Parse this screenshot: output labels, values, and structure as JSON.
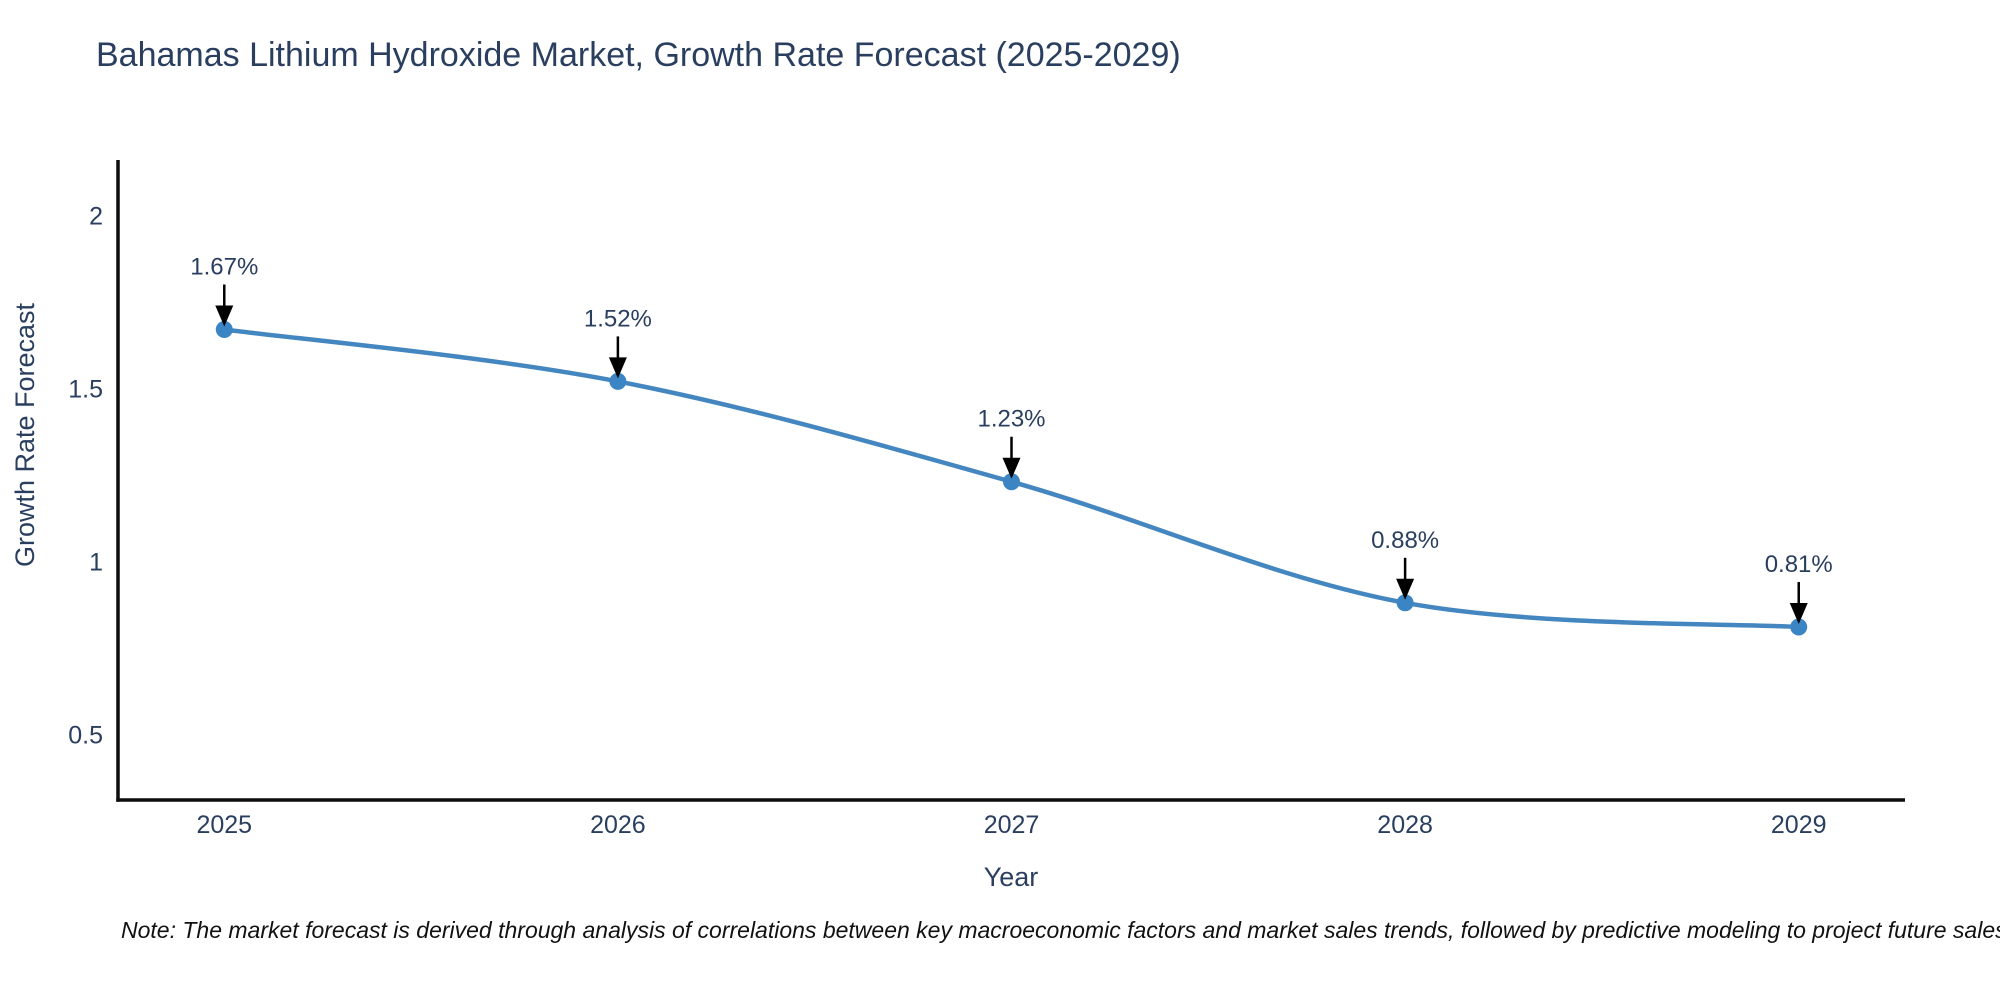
{
  "note": "Note: The market forecast is derived through analysis of correlations between key macroeconomic factors and market sales trends, followed by predictive modeling to project future sales",
  "chart_data": {
    "type": "line",
    "title": "Bahamas Lithium Hydroxide Market, Growth Rate Forecast (2025-2029)",
    "xlabel": "Year",
    "ylabel": "Growth Rate Forecast",
    "x": [
      2025,
      2026,
      2027,
      2028,
      2029
    ],
    "series": [
      {
        "name": "Growth Rate Forecast",
        "values": [
          1.67,
          1.52,
          1.23,
          0.88,
          0.81
        ]
      }
    ],
    "point_labels": [
      "1.67%",
      "1.52%",
      "1.23%",
      "0.88%",
      "0.81%"
    ],
    "x_tick_labels": [
      "2025",
      "2026",
      "2027",
      "2028",
      "2029"
    ],
    "y_tick_values": [
      2,
      1.5,
      1,
      0.5
    ],
    "y_tick_labels": [
      "2",
      "1.5",
      "1",
      "0.5"
    ],
    "xlim": [
      2024.73,
      2029.27
    ],
    "ylim": [
      0.31,
      2.16
    ],
    "line_shape": "spline",
    "grid": false,
    "legend_position": "none",
    "units": "%",
    "colors": {
      "line": "#4486c0",
      "marker": "#3c85c5",
      "axis_line": "#0d0d0d",
      "text": "#2a3f5f",
      "annotation_arrow": "#000000",
      "background": "#ffffff"
    }
  }
}
